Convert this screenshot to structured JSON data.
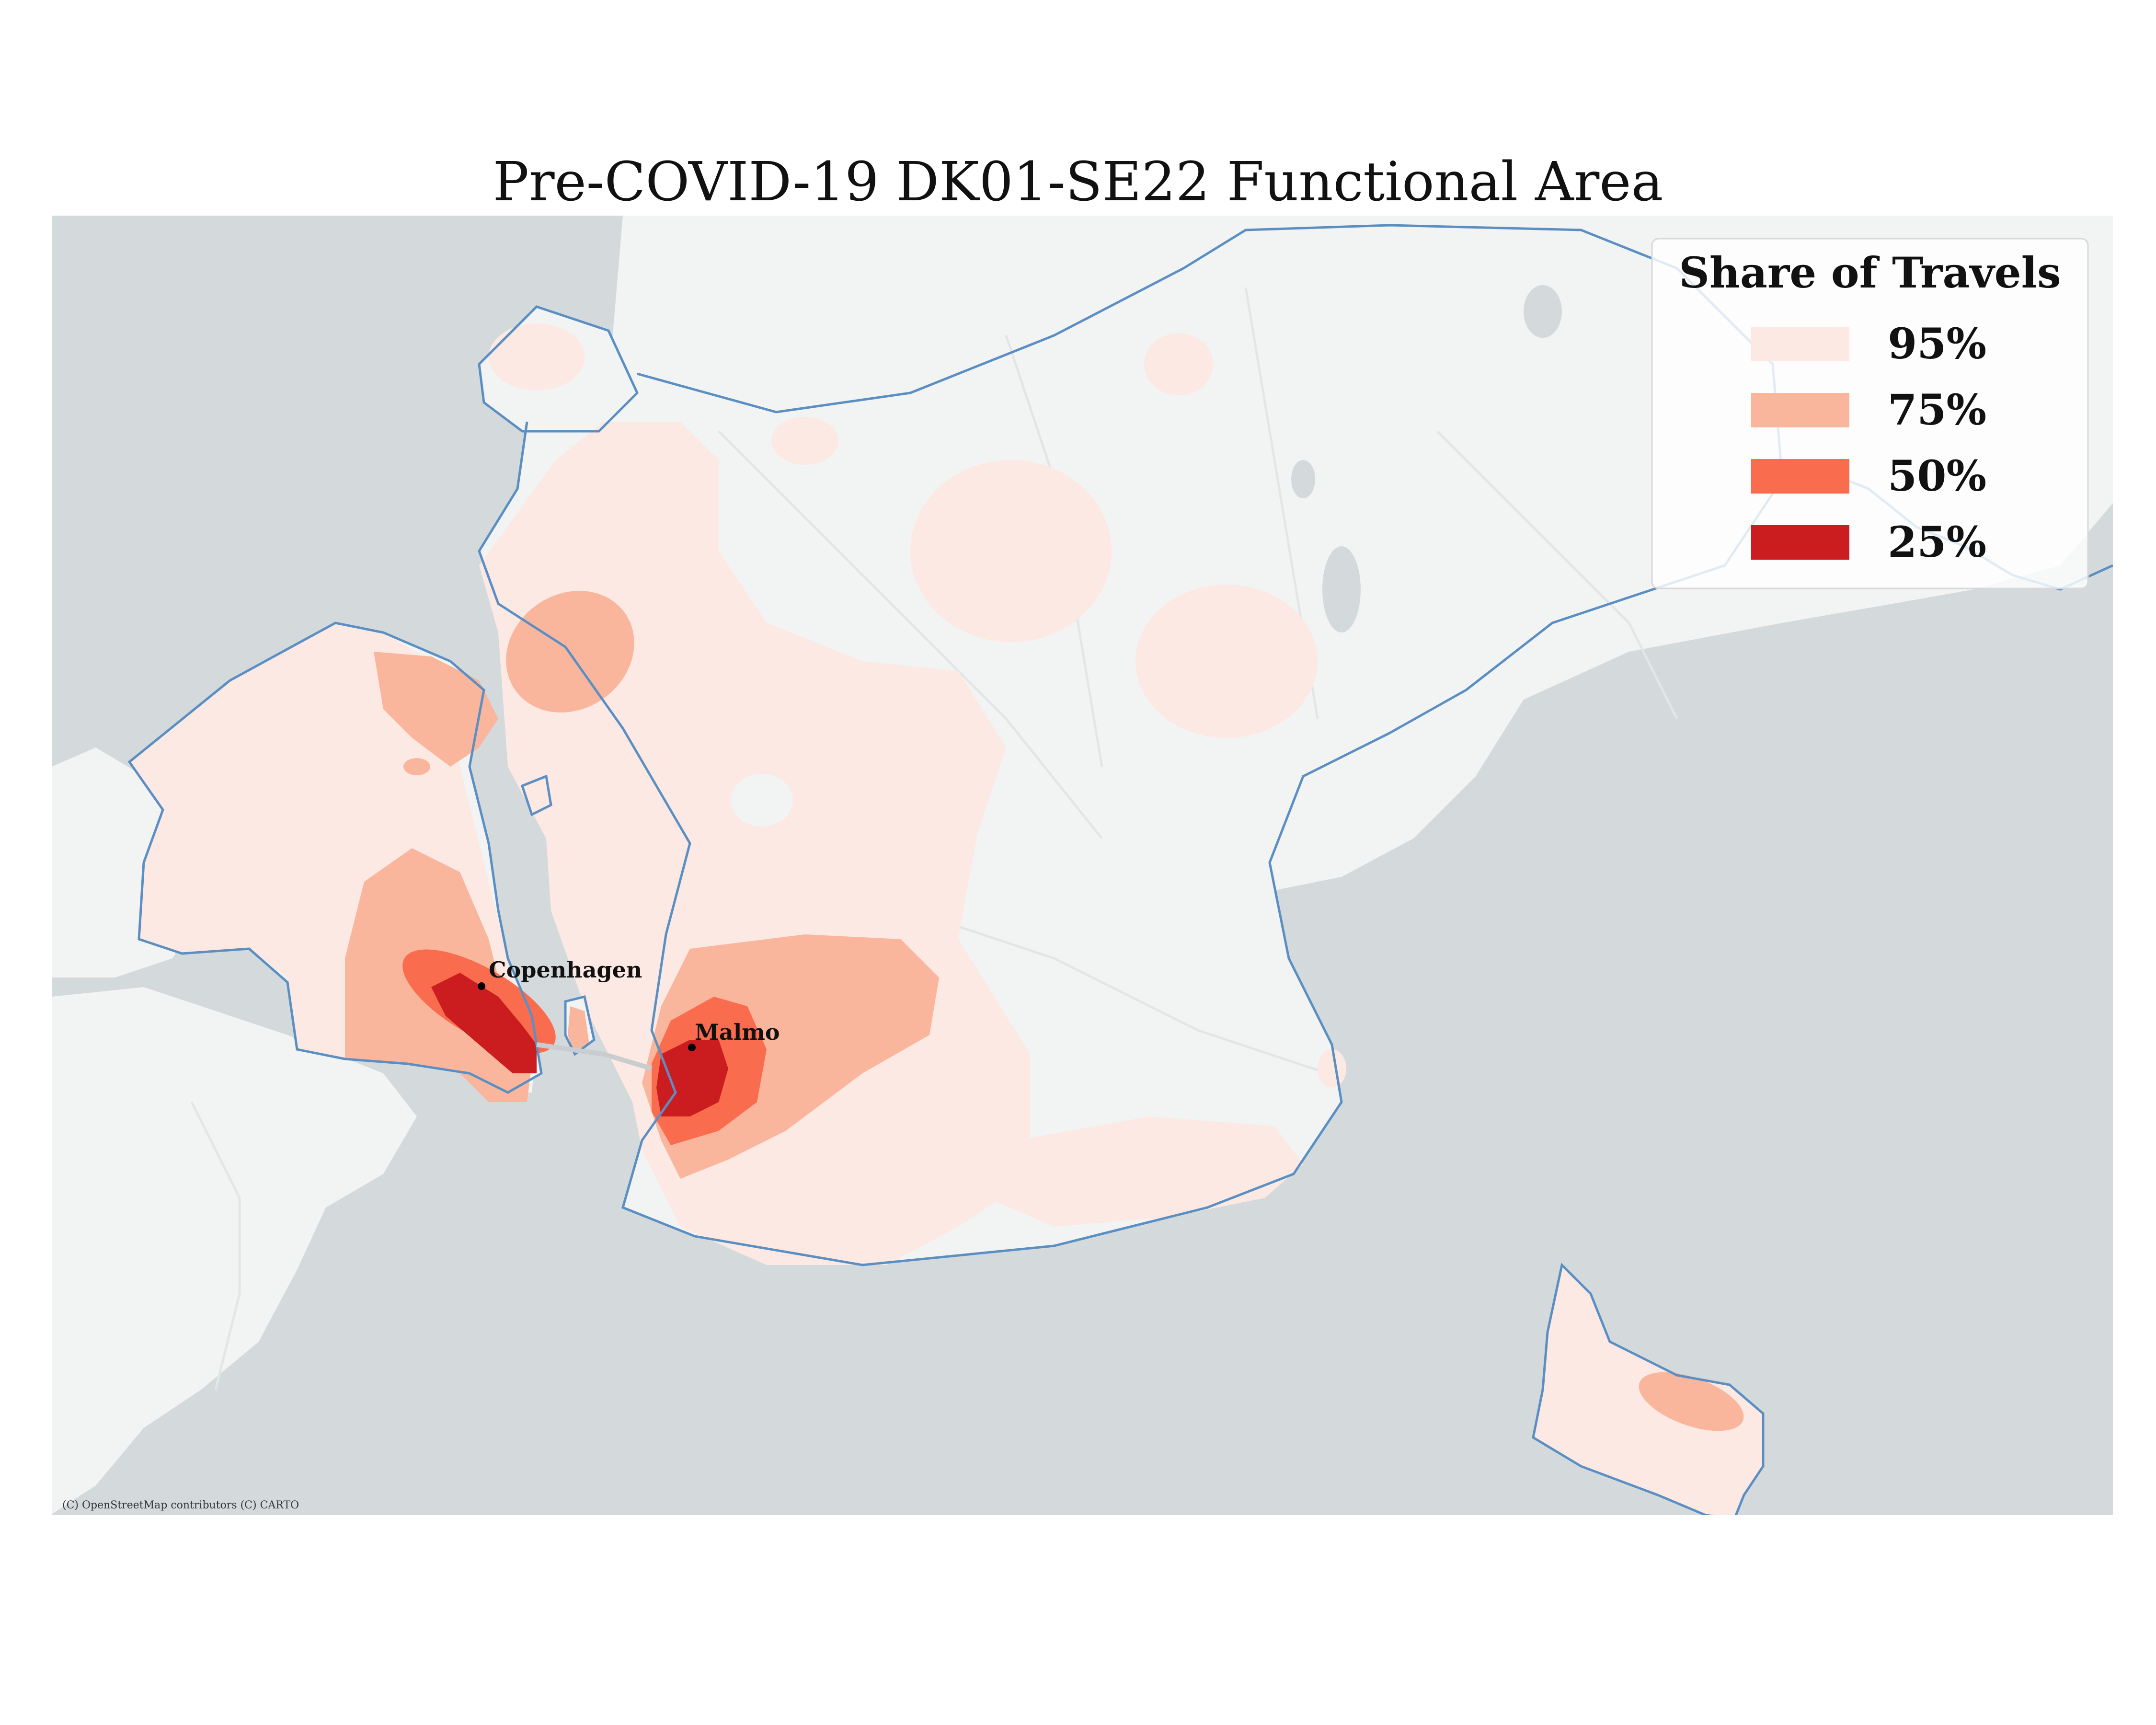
{
  "title": "Pre-COVID-19 DK01-SE22 Functional Area",
  "legend": {
    "title": "Share of Travels",
    "items": [
      {
        "label": "95%",
        "color": "#fde9e3"
      },
      {
        "label": "75%",
        "color": "#f9b69c"
      },
      {
        "label": "50%",
        "color": "#f96c4e"
      },
      {
        "label": "25%",
        "color": "#cb1c1f"
      }
    ]
  },
  "cities": [
    {
      "name": "Copenhagen"
    },
    {
      "name": "Malmo"
    }
  ],
  "attribution": "(C) OpenStreetMap contributors (C) CARTO",
  "colors": {
    "sea": "#d4dadc",
    "land": "#f2f3f3",
    "coast": "#5b8fc4",
    "road": "#e3e6e7"
  }
}
